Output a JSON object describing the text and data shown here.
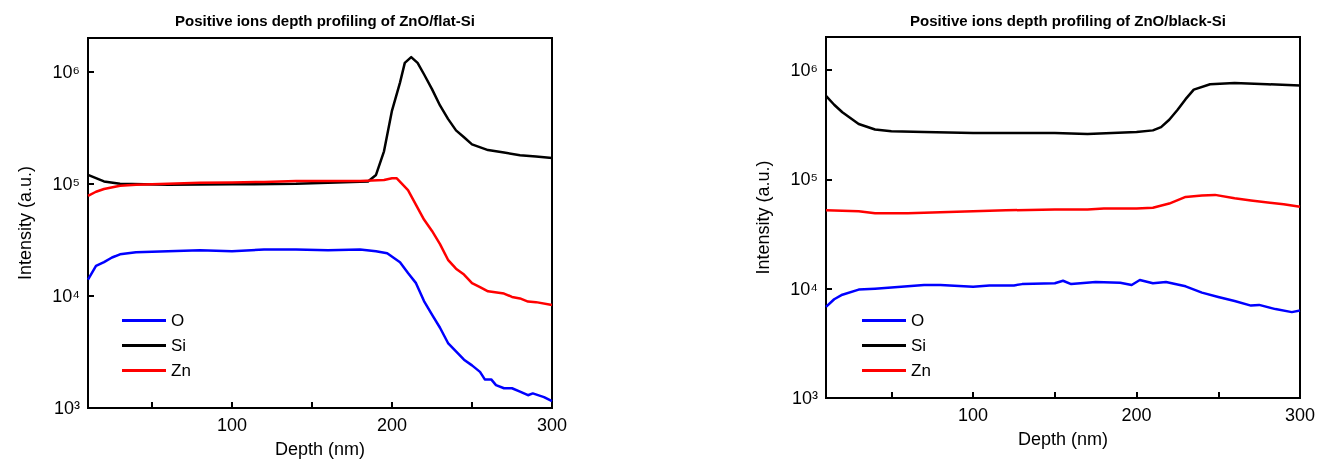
{
  "chart_data": [
    {
      "type": "line",
      "title": "Positive ions depth profiling of ZnO/flat-Si",
      "xlabel": "Depth (nm)",
      "ylabel": "Intensity (a.u.)",
      "log": "y",
      "grid": false,
      "legend": "bottom left",
      "marker": "none",
      "line_style": "solid",
      "xlim": [
        10,
        300
      ],
      "xticks": [
        {
          "value": 50,
          "label": null
        },
        100,
        {
          "value": 150,
          "label": null
        },
        200,
        {
          "value": 250,
          "label": null
        },
        300
      ],
      "ylim": [
        1000,
        2000000
      ],
      "yticks": [
        {
          "value": 1000,
          "label": "10³"
        },
        {
          "value": 10000,
          "label": "10⁴"
        },
        {
          "value": 100000,
          "label": "10⁵"
        },
        {
          "value": 1000000,
          "label": "10⁶"
        }
      ],
      "series": [
        {
          "name": "O",
          "color": "#0000ff",
          "x": [
            10,
            15,
            20,
            25,
            30,
            40,
            60,
            80,
            100,
            120,
            140,
            160,
            180,
            190,
            197,
            205,
            210,
            215,
            220,
            225,
            230,
            235,
            240,
            245,
            250,
            255,
            258,
            262,
            265,
            270,
            275,
            280,
            285,
            288,
            295,
            300
          ],
          "values": [
            14000,
            18500,
            20000,
            22000,
            23500,
            24500,
            25000,
            25500,
            25000,
            26000,
            26000,
            25500,
            26000,
            25000,
            24000,
            20000,
            16000,
            13000,
            9000,
            6800,
            5200,
            3800,
            3200,
            2700,
            2400,
            2100,
            1800,
            1800,
            1600,
            1500,
            1500,
            1400,
            1300,
            1350,
            1250,
            1150
          ]
        },
        {
          "name": "Si",
          "color": "#000000",
          "x": [
            10,
            20,
            30,
            60,
            100,
            140,
            185,
            190,
            195,
            200,
            205,
            208,
            212,
            216,
            220,
            225,
            230,
            235,
            240,
            245,
            250,
            260,
            270,
            280,
            290,
            300
          ],
          "values": [
            120000,
            105000,
            100000,
            98000,
            99000,
            100000,
            105000,
            120000,
            195000,
            450000,
            800000,
            1200000,
            1350000,
            1200000,
            950000,
            700000,
            500000,
            380000,
            300000,
            260000,
            225000,
            200000,
            190000,
            180000,
            175000,
            170000
          ]
        },
        {
          "name": "Zn",
          "color": "#ff0000",
          "x": [
            10,
            15,
            20,
            30,
            40,
            60,
            80,
            100,
            120,
            140,
            160,
            180,
            195,
            200,
            203,
            210,
            215,
            220,
            225,
            230,
            235,
            240,
            245,
            250,
            255,
            260,
            270,
            275,
            280,
            285,
            290,
            300
          ],
          "values": [
            78000,
            85000,
            90000,
            96000,
            98000,
            100000,
            102000,
            103000,
            104000,
            106000,
            106000,
            106000,
            108000,
            112000,
            112000,
            88000,
            65000,
            48000,
            38000,
            29000,
            21000,
            17500,
            15500,
            13000,
            12000,
            11000,
            10500,
            9800,
            9500,
            8900,
            8800,
            8300
          ]
        }
      ]
    },
    {
      "type": "line",
      "title": "Positive ions depth profiling of ZnO/black-Si",
      "xlabel": "Depth (nm)",
      "ylabel": "Intensity (a.u.)",
      "log": "y",
      "grid": false,
      "legend": "bottom left",
      "marker": "none",
      "line_style": "solid",
      "xlim": [
        10,
        300
      ],
      "xticks": [
        {
          "value": 50,
          "label": null
        },
        100,
        {
          "value": 150,
          "label": null
        },
        200,
        {
          "value": 250,
          "label": null
        },
        300
      ],
      "ylim": [
        1000,
        2000000
      ],
      "yticks": [
        {
          "value": 1000,
          "label": "10³"
        },
        {
          "value": 10000,
          "label": "10⁴"
        },
        {
          "value": 100000,
          "label": "10⁵"
        },
        {
          "value": 1000000,
          "label": "10⁶"
        }
      ],
      "series": [
        {
          "name": "O",
          "color": "#0000ff",
          "x": [
            10,
            15,
            20,
            30,
            40,
            60,
            70,
            80,
            100,
            110,
            125,
            130,
            150,
            155,
            160,
            175,
            190,
            197,
            202,
            210,
            218,
            230,
            240,
            250,
            260,
            270,
            275,
            285,
            295,
            300
          ],
          "values": [
            6800,
            8000,
            8800,
            9800,
            10000,
            10500,
            10800,
            10800,
            10400,
            10700,
            10700,
            11000,
            11200,
            11800,
            11000,
            11500,
            11300,
            10800,
            12000,
            11200,
            11500,
            10500,
            9200,
            8400,
            7700,
            7000,
            7100,
            6500,
            6100,
            6300
          ]
        },
        {
          "name": "Si",
          "color": "#000000",
          "x": [
            10,
            15,
            20,
            30,
            40,
            50,
            70,
            100,
            150,
            170,
            200,
            210,
            215,
            220,
            225,
            230,
            235,
            245,
            260,
            280,
            300
          ],
          "values": [
            580000,
            480000,
            410000,
            320000,
            285000,
            275000,
            270000,
            265000,
            265000,
            260000,
            270000,
            280000,
            300000,
            350000,
            430000,
            540000,
            660000,
            740000,
            760000,
            740000,
            720000
          ]
        },
        {
          "name": "Zn",
          "color": "#ff0000",
          "x": [
            10,
            30,
            40,
            60,
            80,
            100,
            120,
            150,
            170,
            180,
            200,
            210,
            220,
            230,
            240,
            248,
            260,
            270,
            290,
            300
          ],
          "values": [
            52000,
            51000,
            49000,
            49000,
            50000,
            51000,
            52000,
            53000,
            53000,
            54000,
            54000,
            55000,
            60000,
            69000,
            71000,
            72000,
            67000,
            64000,
            59000,
            56000
          ]
        }
      ]
    }
  ]
}
